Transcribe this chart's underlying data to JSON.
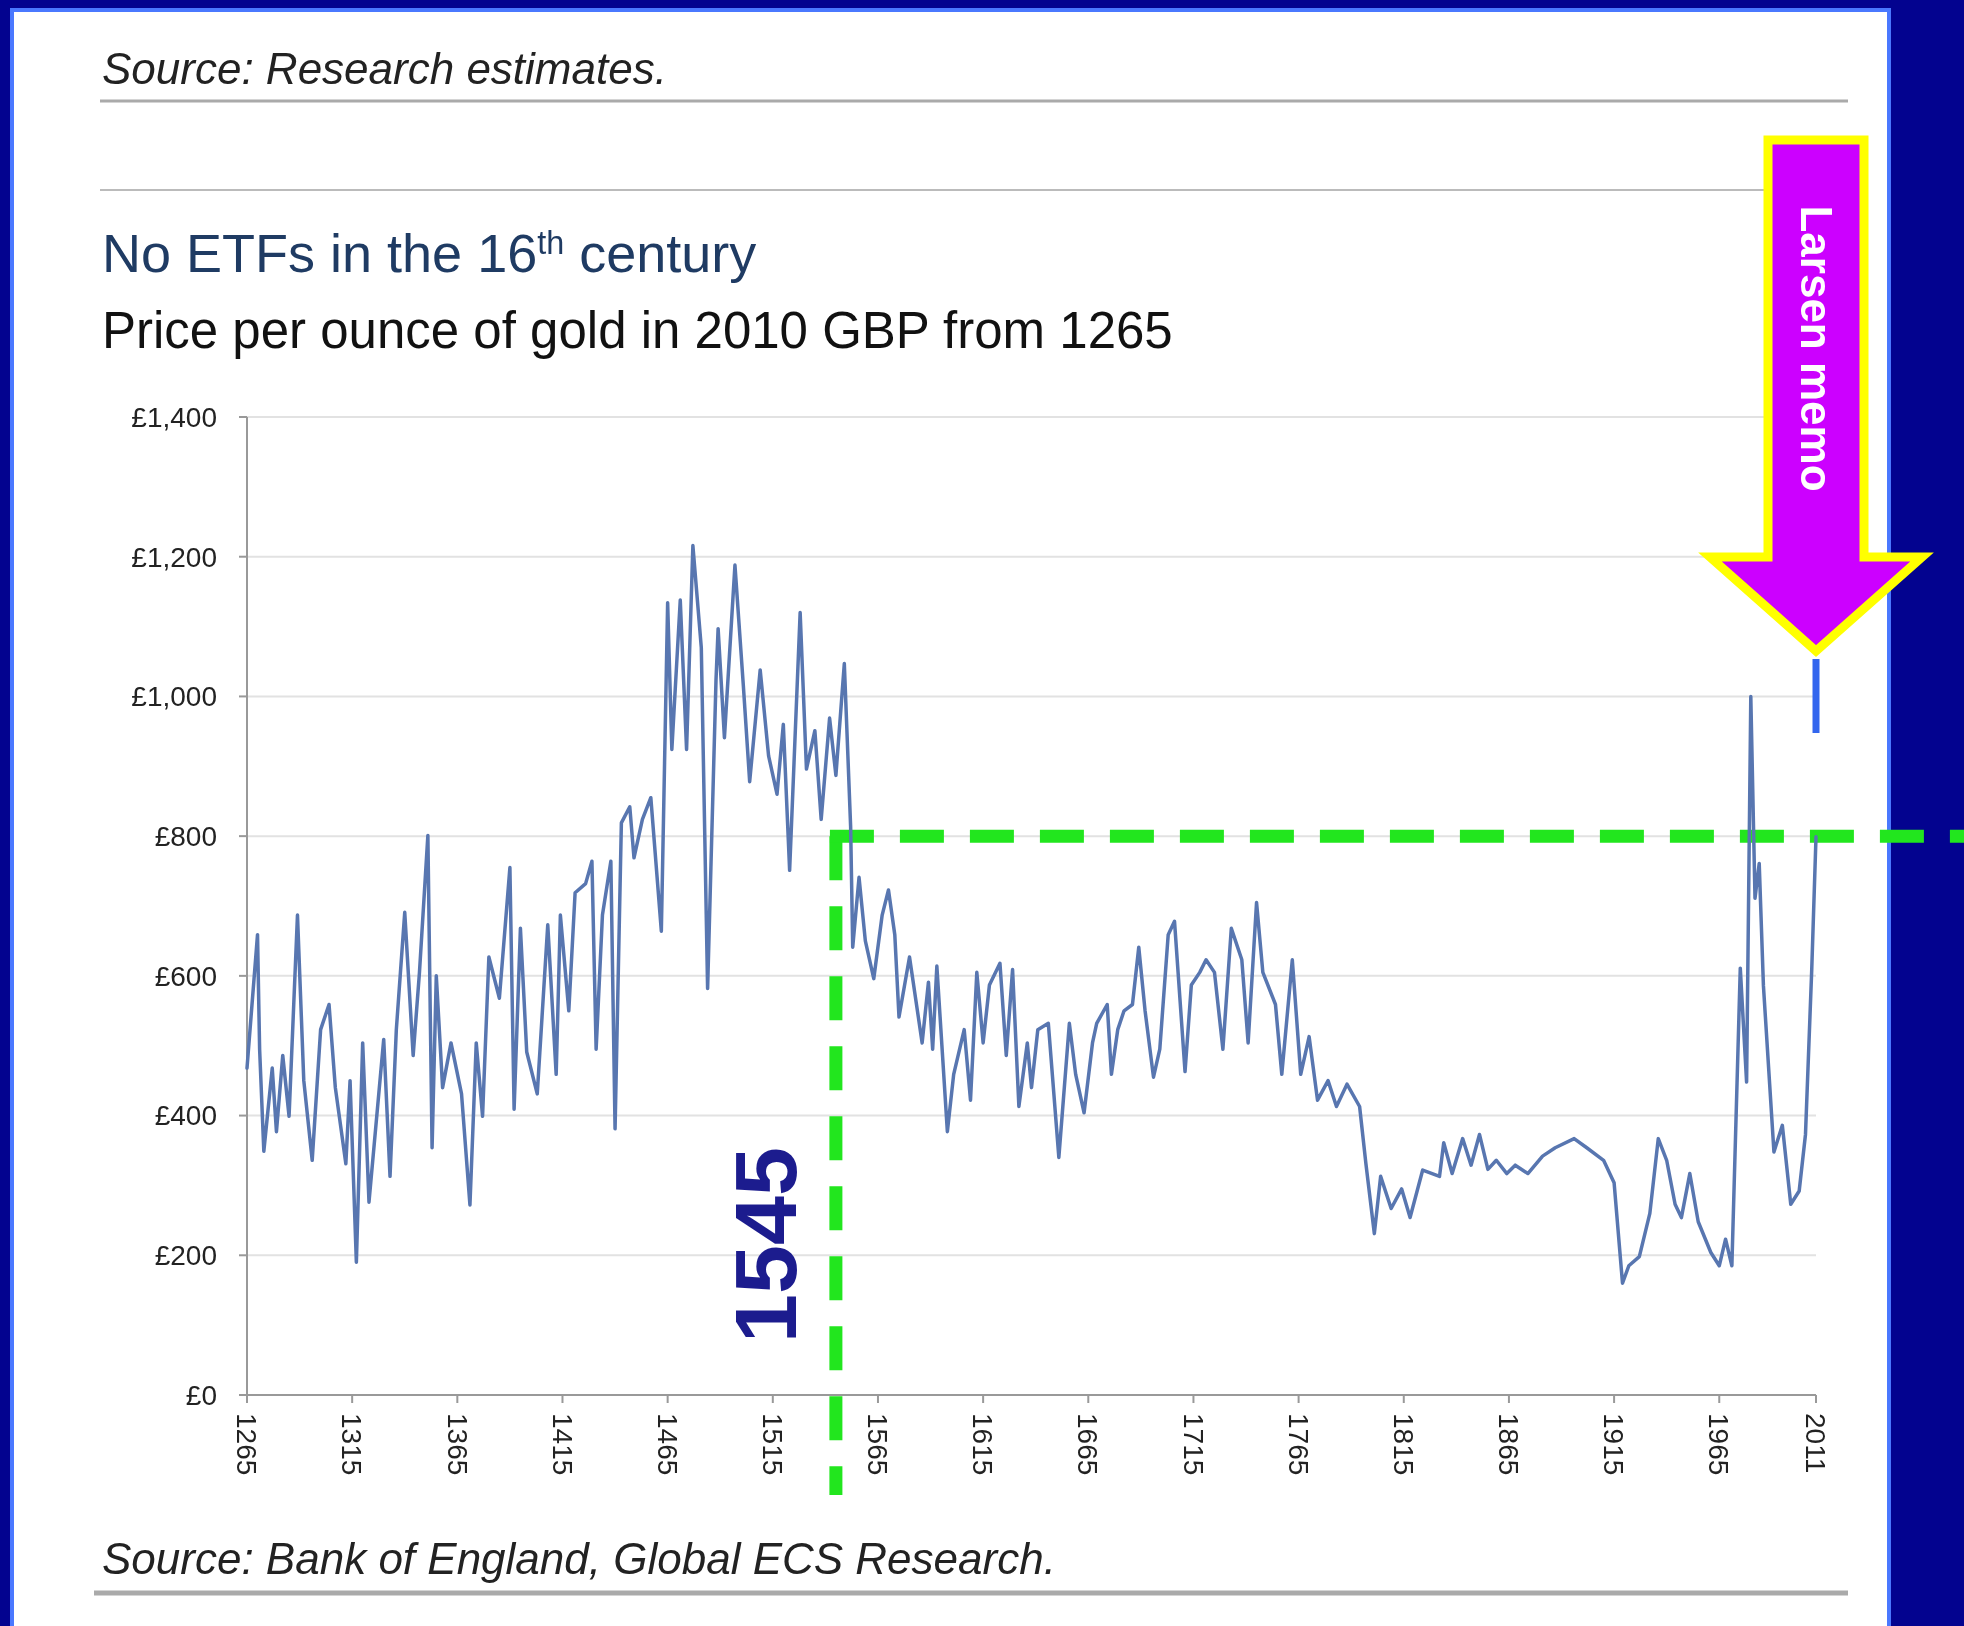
{
  "chart_data": {
    "type": "line",
    "title": "No ETFs in the 16$^{th}$ century",
    "subtitle": "Price per ounce of gold in 2010 GBP from 1265",
    "x": [
      1265,
      1270,
      1271,
      1273,
      1277,
      1279,
      1282,
      1285,
      1289,
      1292,
      1296,
      1300,
      1304,
      1307,
      1312,
      1314,
      1317,
      1320,
      1323,
      1330,
      1333,
      1336,
      1340,
      1344,
      1347,
      1351,
      1353,
      1355,
      1358,
      1362,
      1367,
      1371,
      1374,
      1377,
      1380,
      1385,
      1390,
      1392,
      1395,
      1398,
      1403,
      1408,
      1412,
      1414,
      1418,
      1421,
      1426,
      1429,
      1431,
      1434,
      1438,
      1440,
      1443,
      1447,
      1449,
      1453,
      1457,
      1462,
      1465,
      1467,
      1471,
      1474,
      1477,
      1481,
      1484,
      1488,
      1489,
      1492,
      1497,
      1501,
      1504,
      1509,
      1513,
      1517,
      1520,
      1523,
      1528,
      1531,
      1535,
      1538,
      1542,
      1545,
      1549,
      1552,
      1553,
      1556,
      1559,
      1563,
      1567,
      1570,
      1573,
      1575,
      1580,
      1586,
      1589,
      1591,
      1593,
      1598,
      1601,
      1606,
      1609,
      1612,
      1615,
      1618,
      1623,
      1626,
      1629,
      1632,
      1636,
      1638,
      1641,
      1646,
      1651,
      1656,
      1659,
      1663,
      1667,
      1669,
      1674,
      1676,
      1679,
      1682,
      1686,
      1689,
      1692,
      1696,
      1699,
      1703,
      1706,
      1711,
      1714,
      1718,
      1721,
      1725,
      1729,
      1733,
      1738,
      1741,
      1745,
      1748,
      1754,
      1757,
      1762,
      1766,
      1770,
      1774,
      1779,
      1783,
      1788,
      1794,
      1797,
      1801,
      1804,
      1809,
      1814,
      1818,
      1824,
      1832,
      1834,
      1838,
      1843,
      1847,
      1851,
      1855,
      1859,
      1864,
      1868,
      1874,
      1881,
      1887,
      1896,
      1902,
      1910,
      1915,
      1919,
      1922,
      1927,
      1932,
      1936,
      1940,
      1944,
      1947,
      1951,
      1955,
      1961,
      1965,
      1968,
      1971,
      1975,
      1978,
      1980,
      1982,
      1984,
      1986,
      1991,
      1995,
      1999,
      2003,
      2006,
      2009,
      2011
    ],
    "series": [
      {
        "color": "#5876b0",
        "values": [
          468,
          659,
          495,
          349,
          468,
          377,
          486,
          399,
          687,
          450,
          336,
          523,
          559,
          440,
          331,
          450,
          190,
          504,
          276,
          509,
          313,
          523,
          691,
          486,
          605,
          801,
          354,
          600,
          440,
          504,
          431,
          272,
          504,
          399,
          627,
          568,
          755,
          409,
          668,
          491,
          431,
          673,
          459,
          687,
          550,
          719,
          732,
          764,
          495,
          687,
          764,
          381,
          819,
          842,
          769,
          824,
          855,
          664,
          1134,
          924,
          1138,
          924,
          1216,
          1070,
          582,
          1024,
          1097,
          941,
          1188,
          1015,
          878,
          1038,
          915,
          860,
          960,
          751,
          1120,
          896,
          951,
          824,
          969,
          887,
          1047,
          814,
          641,
          741,
          650,
          596,
          687,
          723,
          659,
          541,
          627,
          504,
          591,
          495,
          614,
          377,
          459,
          523,
          422,
          605,
          504,
          587,
          618,
          486,
          609,
          413,
          504,
          440,
          523,
          532,
          340,
          532,
          459,
          404,
          504,
          532,
          559,
          459,
          523,
          550,
          559,
          641,
          550,
          455,
          495,
          659,
          678,
          463,
          587,
          605,
          623,
          605,
          495,
          668,
          623,
          504,
          705,
          605,
          559,
          459,
          623,
          459,
          513,
          422,
          450,
          413,
          445,
          413,
          331,
          231,
          313,
          267,
          295,
          254,
          322,
          313,
          361,
          317,
          367,
          329,
          373,
          323,
          336,
          317,
          329,
          317,
          342,
          354,
          367,
          354,
          336,
          304,
          160,
          185,
          198,
          260,
          367,
          336,
          273,
          254,
          317,
          248,
          204,
          185,
          223,
          185,
          611,
          448,
          1000,
          711,
          761,
          586,
          348,
          386,
          273,
          292,
          373,
          611,
          799
        ]
      }
    ],
    "xlim": [
      1265,
      2011
    ],
    "xticks": [
      1265,
      1315,
      1365,
      1415,
      1465,
      1515,
      1565,
      1615,
      1665,
      1715,
      1765,
      1815,
      1865,
      1915,
      1965,
      2011
    ],
    "ylim": [
      0,
      1400
    ],
    "yticks": [
      {
        "value": 0,
        "label": "£0"
      },
      {
        "value": 200,
        "label": "£200"
      },
      {
        "value": 400,
        "label": "£400"
      },
      {
        "value": 600,
        "label": "£600"
      },
      {
        "value": 800,
        "label": "£800"
      },
      {
        "value": 1000,
        "label": "£1,000"
      },
      {
        "value": 1200,
        "label": "£1,200"
      },
      {
        "value": 1400,
        "label": "£1,400"
      }
    ],
    "grid": "y",
    "ref_lines": [
      {
        "axis": "x",
        "value": 1545,
        "label": "1545",
        "color": "#22e61e",
        "line_style": "dashed"
      },
      {
        "axis": "y",
        "value": 800,
        "color": "#22e61e",
        "line_style": "dashed"
      }
    ],
    "annotations": [
      "Source: Research estimates.",
      "Source: Bank of England, Global ECS Research.",
      "Larsen memo"
    ]
  }
}
